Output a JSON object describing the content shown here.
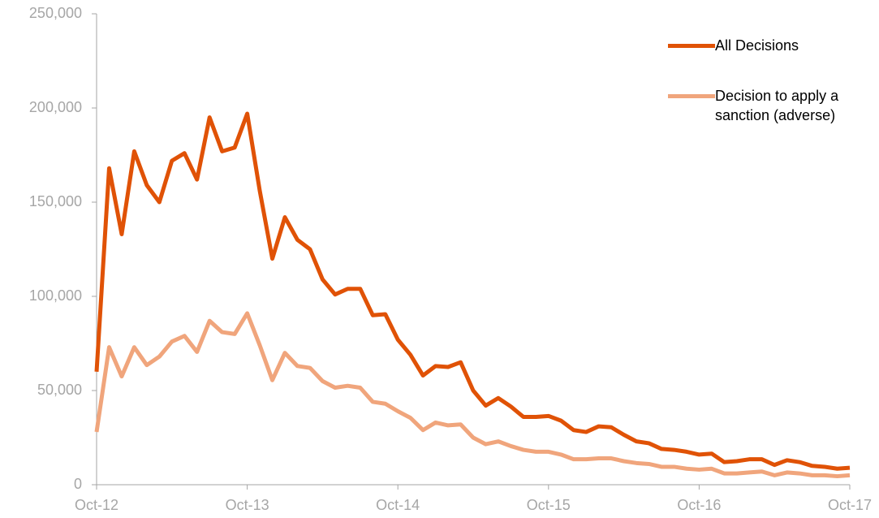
{
  "chart_data": {
    "type": "line",
    "categories": [
      "Oct-12",
      null,
      null,
      null,
      null,
      null,
      null,
      null,
      null,
      null,
      null,
      null,
      "Oct-13",
      null,
      null,
      null,
      null,
      null,
      null,
      null,
      null,
      null,
      null,
      null,
      "Oct-14",
      null,
      null,
      null,
      null,
      null,
      null,
      null,
      null,
      null,
      null,
      null,
      "Oct-15",
      null,
      null,
      null,
      null,
      null,
      null,
      null,
      null,
      null,
      null,
      null,
      "Oct-16",
      null,
      null,
      null,
      null,
      null,
      null,
      null,
      null,
      null,
      null,
      null,
      "Oct-17"
    ],
    "series": [
      {
        "name": "All Decisions",
        "color": "#e05206",
        "values": [
          60000,
          168000,
          133000,
          177000,
          159000,
          150000,
          172000,
          176000,
          162000,
          195000,
          177000,
          179000,
          197000,
          156000,
          120000,
          142000,
          130000,
          125000,
          109000,
          101000,
          104000,
          104000,
          90000,
          90500,
          77000,
          69000,
          58000,
          63000,
          62500,
          65000,
          50000,
          42000,
          46000,
          41500,
          36000,
          36000,
          36500,
          34000,
          29000,
          28000,
          31000,
          30500,
          26500,
          23000,
          22000,
          19000,
          18500,
          17500,
          16000,
          16500,
          12000,
          12500,
          13500,
          13500,
          10500,
          13000,
          12000,
          10000,
          9500,
          8500,
          9000
        ]
      },
      {
        "name": "Decision to apply a sanction (adverse)",
        "color": "#f0a57c",
        "values": [
          28000,
          73000,
          57500,
          73000,
          63500,
          68000,
          76000,
          79000,
          70500,
          87000,
          81000,
          80000,
          91000,
          74000,
          55500,
          70000,
          63000,
          62000,
          55000,
          51500,
          52500,
          51500,
          44000,
          43000,
          39000,
          35500,
          29000,
          33000,
          31500,
          32000,
          25000,
          21500,
          23000,
          20500,
          18500,
          17500,
          17500,
          16000,
          13500,
          13500,
          14000,
          14000,
          12500,
          11500,
          11000,
          9500,
          9500,
          8500,
          8000,
          8500,
          6000,
          6000,
          6500,
          7000,
          5000,
          6500,
          6000,
          5000,
          5000,
          4500,
          5000
        ]
      }
    ],
    "ylim": [
      0,
      250000
    ],
    "yticks": [
      0,
      {
        "value": 50000,
        "label": "50,000"
      },
      {
        "value": 100000,
        "label": "100,000"
      },
      {
        "value": 150000,
        "label": "150,000"
      },
      {
        "value": 200000,
        "label": "200,000"
      },
      {
        "value": 250000,
        "label": "250,000"
      }
    ],
    "grid": false,
    "legend": "top-right"
  }
}
